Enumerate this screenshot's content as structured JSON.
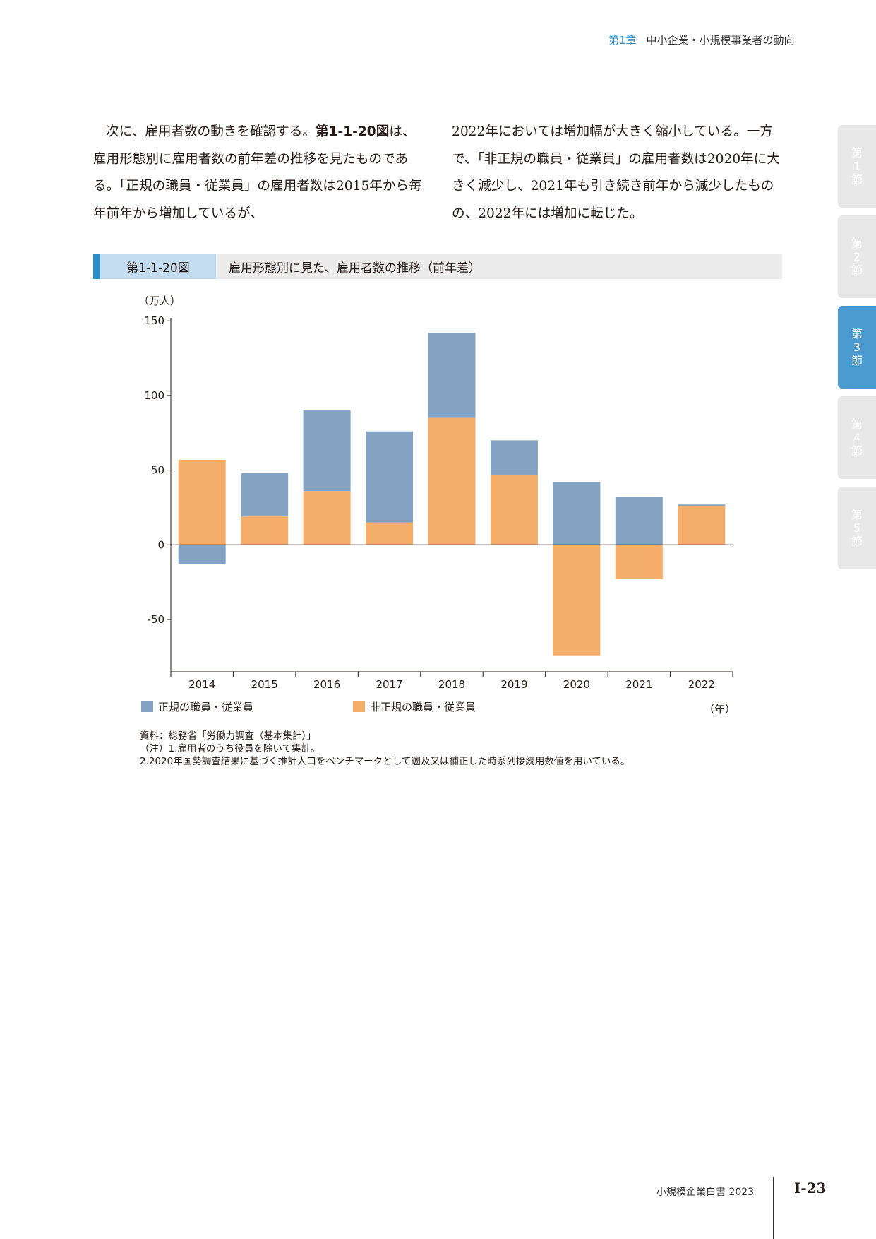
{
  "header": {
    "chapter": "第1章",
    "title": "中小企業・小規模事業者の動向"
  },
  "tabs": [
    {
      "line1": "第",
      "line2": "1",
      "line3": "節",
      "active": false
    },
    {
      "line1": "第",
      "line2": "2",
      "line3": "節",
      "active": false
    },
    {
      "line1": "第",
      "line2": "3",
      "line3": "節",
      "active": true
    },
    {
      "line1": "第",
      "line2": "4",
      "line3": "節",
      "active": false
    },
    {
      "line1": "第",
      "line2": "5",
      "line3": "節",
      "active": false
    }
  ],
  "text": {
    "left": {
      "p1": "次に、雇用者数の動きを確認する。",
      "ref": "第1-1-20図",
      "p2": "は、雇用形態別に雇用者数の前年差の推移を見たものである。「正規の職員・従業員」の雇用者数は2015年から毎年前年から増加しているが、"
    },
    "right": "2022年においては増加幅が大きく縮小している。一方で、「非正規の職員・従業員」の雇用者数は2020年に大きく減少し、2021年も引き続き前年から減少したものの、2022年には増加に転じた。"
  },
  "figure": {
    "number": "第1-1-20図",
    "title": "雇用形態別に見た、雇用者数の推移（前年差）"
  },
  "chart_data": {
    "type": "bar",
    "stacked": true,
    "categories": [
      "2014",
      "2015",
      "2016",
      "2017",
      "2018",
      "2019",
      "2020",
      "2021",
      "2022"
    ],
    "series": [
      {
        "name": "非正規の職員・従業員",
        "color": "#f4ae6a",
        "values": [
          57,
          19,
          36,
          15,
          85,
          47,
          -74,
          -23,
          26
        ]
      },
      {
        "name": "正規の職員・従業員",
        "color": "#84a3c3",
        "values": [
          -13,
          29,
          54,
          61,
          57,
          23,
          42,
          32,
          1
        ]
      }
    ],
    "ylabel": "（万人）",
    "xlabel": "（年）",
    "ylim": [
      -85,
      152
    ],
    "yticks": [
      150,
      100,
      50,
      0,
      -50
    ],
    "ytick_labels": [
      "150",
      "100",
      "50",
      "0",
      "-50"
    ],
    "legend": [
      "正規の職員・従業員",
      "非正規の職員・従業員"
    ],
    "legend_position": "bottom",
    "grid": false
  },
  "notes": [
    "資料：総務省「労働力調査（基本集計）」",
    "（注）1.雇用者のうち役員を除いて集計。",
    "2.2020年国勢調査結果に基づく推計人口をベンチマークとして遡及又は補正した時系列接続用数値を用いている。"
  ],
  "footer": {
    "title": "小規模企業白書  2023",
    "page": "Ⅰ-23"
  }
}
